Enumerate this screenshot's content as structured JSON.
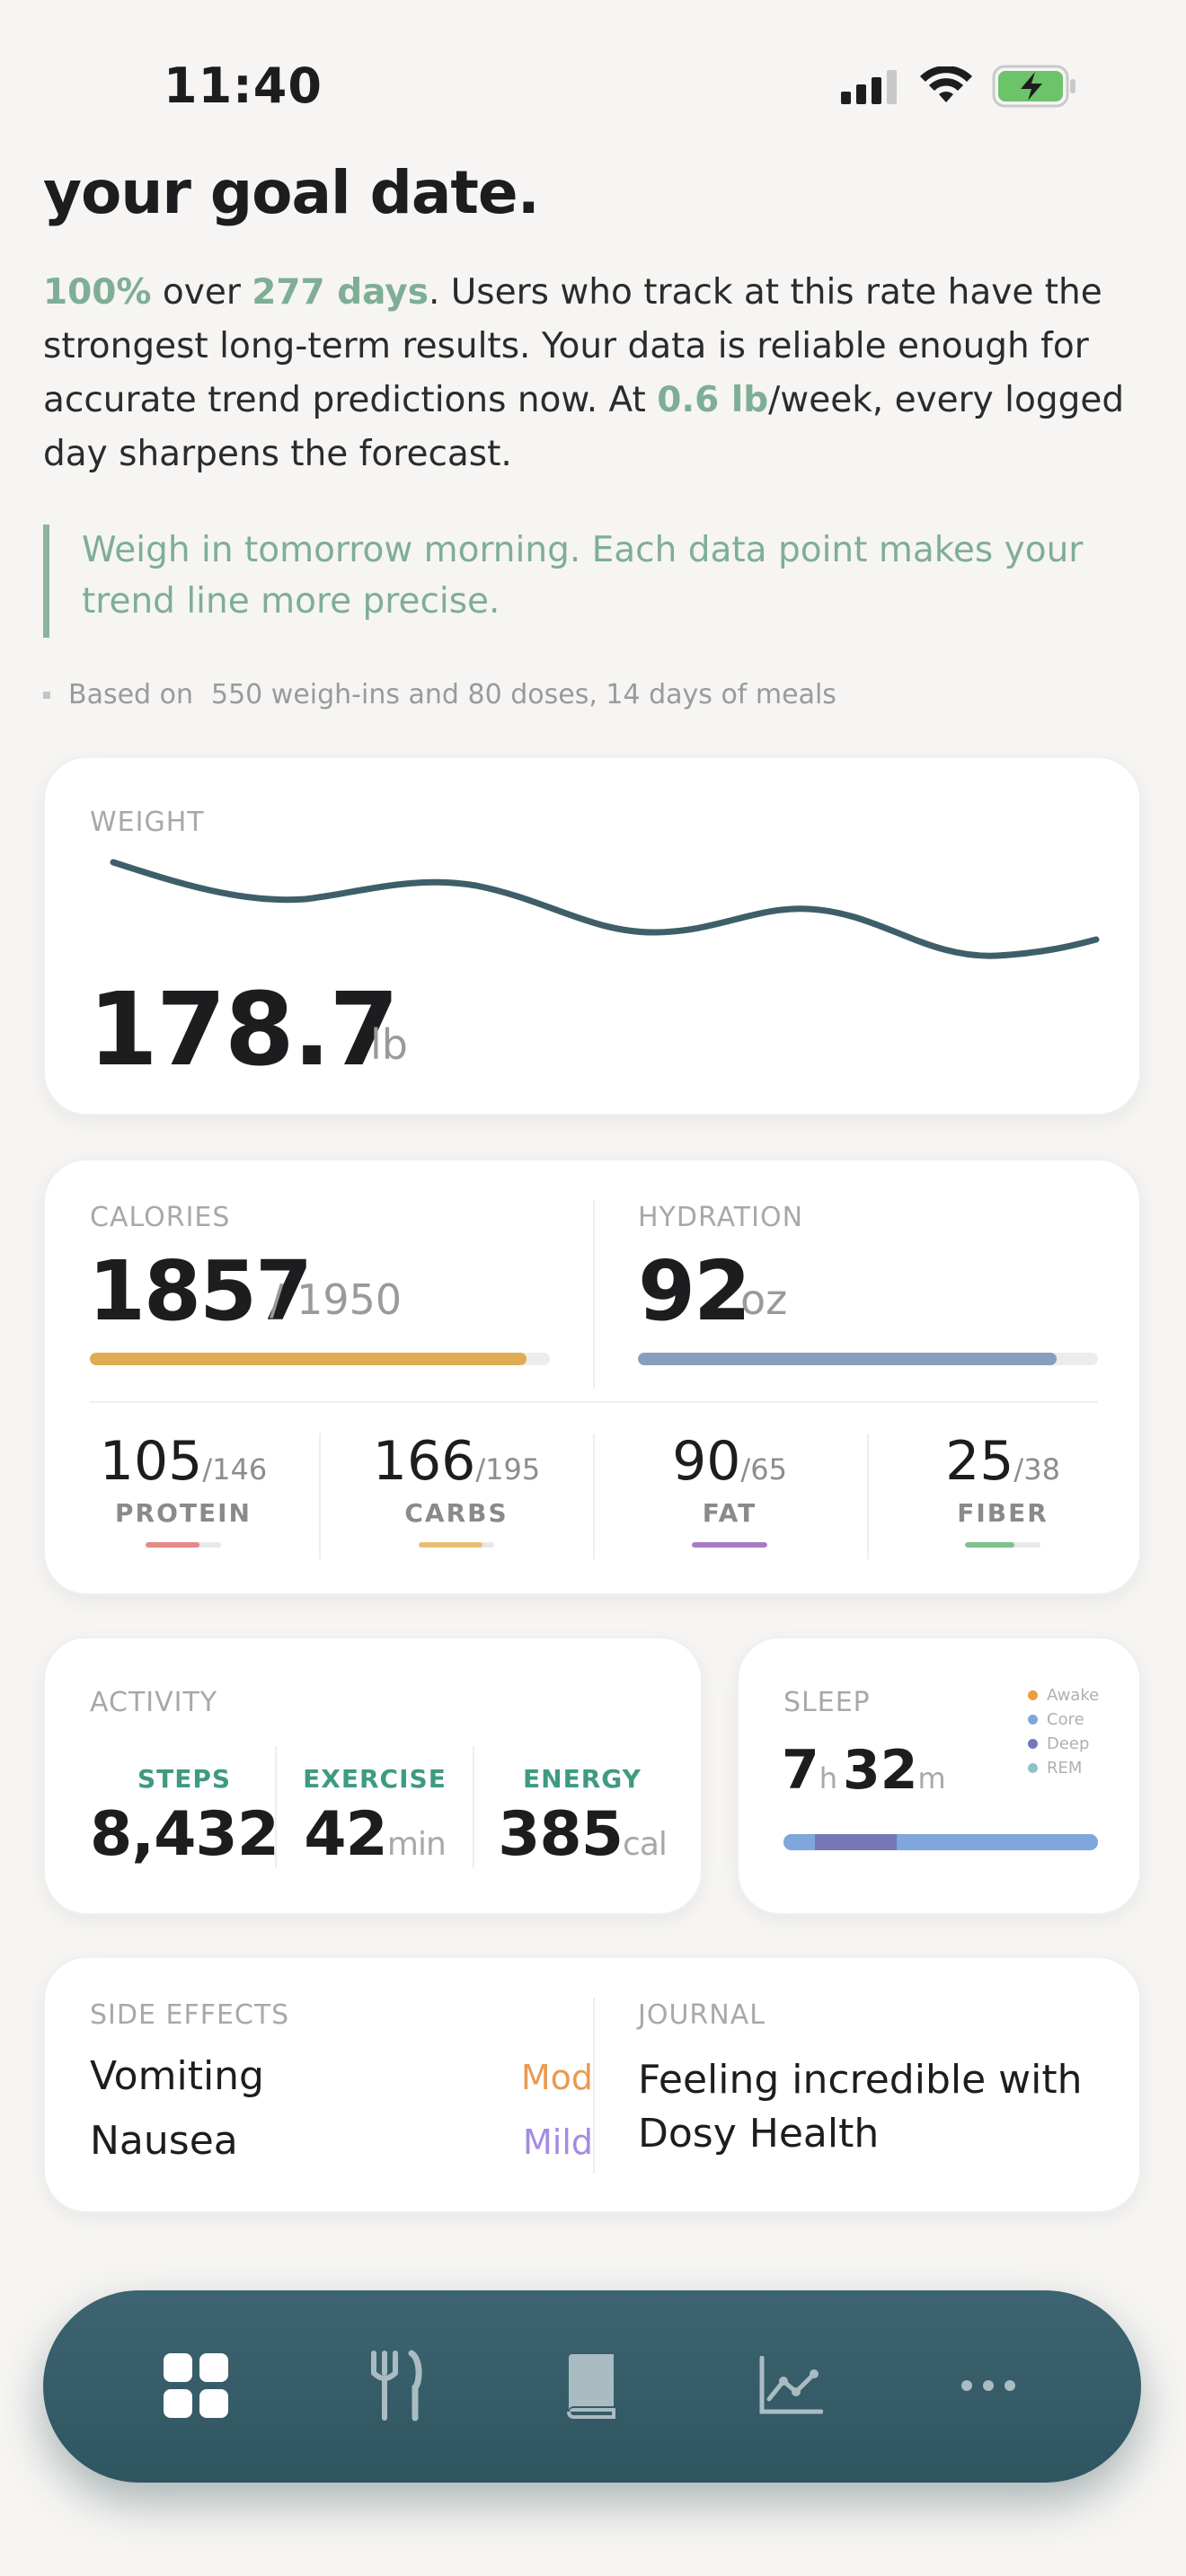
{
  "status_bar": {
    "time": "11:40"
  },
  "header": {
    "headline": "your goal date.",
    "para": {
      "pct": "100%",
      "t1": " over ",
      "days": "277 days",
      "t2": ". Users who track at this rate have the strongest long-term results. Your data is reliable enough for accurate trend predictions now. At ",
      "rate": "0.6 lb",
      "t3": "/week, every logged day sharpens the forecast."
    },
    "tip": "Weigh in tomorrow morning. Each data point makes your trend line more precise.",
    "based_label": "Based on",
    "based_value": "550 weigh-ins and 80 doses, 14 days of meals"
  },
  "weight": {
    "label": "WEIGHT",
    "value": "178.7",
    "unit": "lb"
  },
  "nutrition": {
    "calories_label": "CALORIES",
    "calories_value": "1857",
    "calories_goal": "/ 1950",
    "calories_progress": 0.95,
    "hydration_label": "HYDRATION",
    "hydration_value": "92",
    "hydration_unit": "oz",
    "hydration_progress": 0.91,
    "macros": [
      {
        "name": "PROTEIN",
        "value": "105",
        "goal": "/146",
        "progress": 0.72,
        "color": "#e58a86"
      },
      {
        "name": "CARBS",
        "value": "166",
        "goal": "/195",
        "progress": 0.85,
        "color": "#e9be74"
      },
      {
        "name": "FAT",
        "value": "90",
        "goal": "/65",
        "progress": 1.0,
        "color": "#a77bc5"
      },
      {
        "name": "FIBER",
        "value": "25",
        "goal": "/38",
        "progress": 0.66,
        "color": "#7fc08f"
      }
    ]
  },
  "activity": {
    "label": "ACTIVITY",
    "steps_label": "STEPS",
    "steps_value": "8,432",
    "exercise_label": "EXERCISE",
    "exercise_value": "42",
    "exercise_unit": "min",
    "energy_label": "ENERGY",
    "energy_value": "385",
    "energy_unit": "cal"
  },
  "sleep": {
    "label": "SLEEP",
    "hours": "7",
    "hours_unit": "h",
    "minutes": "32",
    "minutes_unit": "m",
    "legend": [
      {
        "name": "Awake",
        "color": "#ef9a3c"
      },
      {
        "name": "Core",
        "color": "#7fa7dc"
      },
      {
        "name": "Deep",
        "color": "#7478b8"
      },
      {
        "name": "REM",
        "color": "#8fc2cf"
      }
    ],
    "segments": [
      {
        "stage": "Core",
        "fraction": 0.1
      },
      {
        "stage": "Deep",
        "fraction": 0.26
      },
      {
        "stage": "Core",
        "fraction": 0.64
      }
    ]
  },
  "side_effects": {
    "label": "SIDE EFFECTS",
    "items": [
      {
        "name": "Vomiting",
        "severity": "Mod",
        "color": "#e99a52"
      },
      {
        "name": "Nausea",
        "severity": "Mild",
        "color": "#a58be0"
      }
    ]
  },
  "journal": {
    "label": "JOURNAL",
    "text": "Feeling incredible with Dosy Health"
  },
  "tabbar": {
    "tabs": [
      {
        "icon": "dashboard-icon"
      },
      {
        "icon": "fork-knife-icon"
      },
      {
        "icon": "book-icon"
      },
      {
        "icon": "chart-icon"
      },
      {
        "icon": "more-icon"
      }
    ]
  },
  "colors": {
    "accent": "#7fae96",
    "tabbar": "#3a606b",
    "weight_line": "#3e5f6a"
  }
}
